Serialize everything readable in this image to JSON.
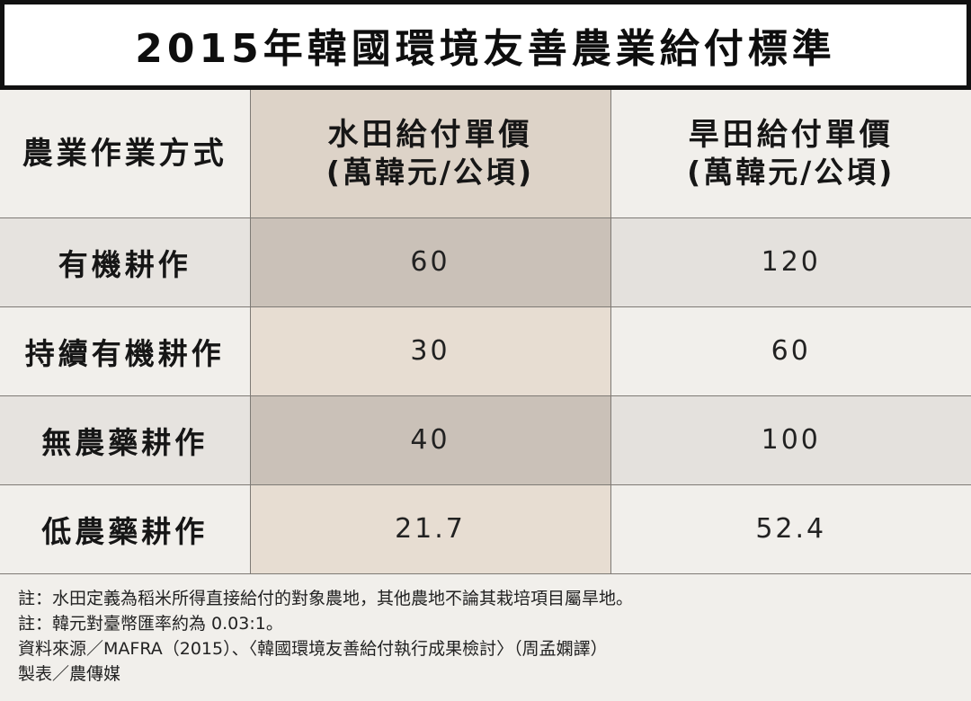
{
  "chart_data": {
    "type": "table",
    "title": "2015年韓國環境友善農業給付標準",
    "columns": [
      {
        "label": "農業作業方式",
        "unit": ""
      },
      {
        "label": "水田給付單價",
        "unit": "(萬韓元/公頃)"
      },
      {
        "label": "旱田給付單價",
        "unit": "(萬韓元/公頃)"
      }
    ],
    "rows": [
      {
        "label": "有機耕作",
        "values": [
          "60",
          "120"
        ]
      },
      {
        "label": "持續有機耕作",
        "values": [
          "30",
          "60"
        ]
      },
      {
        "label": "無農藥耕作",
        "values": [
          "40",
          "100"
        ]
      },
      {
        "label": "低農藥耕作",
        "values": [
          "21.7",
          "52.4"
        ]
      }
    ]
  },
  "notes": [
    "註：水田定義為稻米所得直接給付的對象農地，其他農地不論其栽培項目屬旱地。",
    "註：韓元對臺幣匯率約為 0.03:1。",
    "資料來源／MAFRA（2015）、〈韓國環境友善給付執行成果檢討〉（周孟嫻譯）",
    "製表／農傳媒"
  ],
  "colors": {
    "title_border": "#111111",
    "background": "#f1efeb",
    "paddy_column_dark": "#cac1b8",
    "paddy_column_light": "#e7ddd2",
    "row_shade": "#e6e3df",
    "grid_line": "#7e7a75"
  }
}
